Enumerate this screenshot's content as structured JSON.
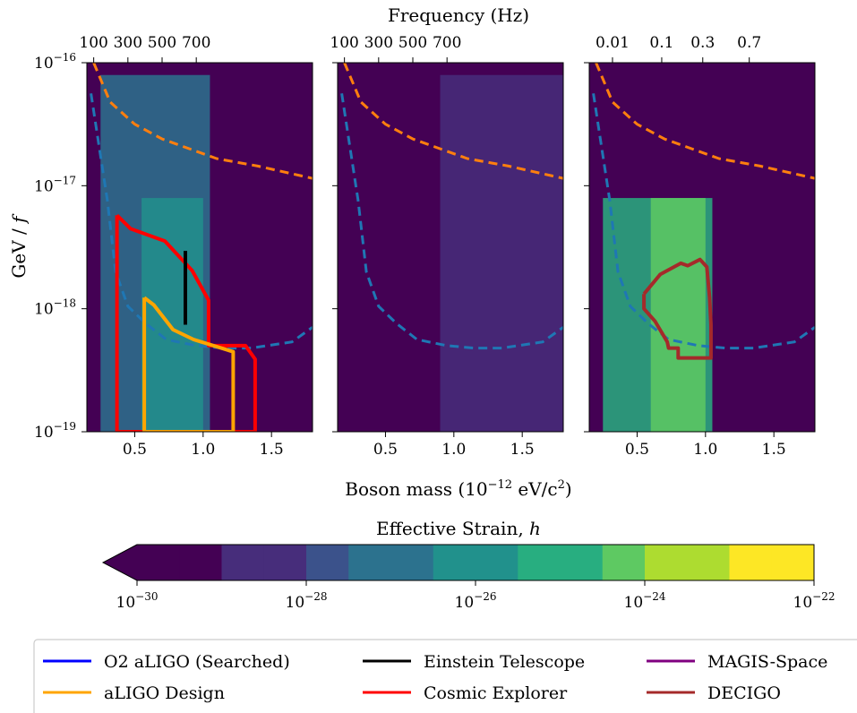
{
  "chart_data": {
    "type": "heatmap",
    "x_axis_label": "Boson mass (10",
    "x_axis_label_sup": "−12",
    "x_axis_label_tail": " eV/c",
    "x_axis_label_sup2": "2",
    "x_axis_label_close": ")",
    "y_axis_label": "GeV / f",
    "top_axis_label": "Frequency (Hz)",
    "colorbar_label": "Effective Strain, h",
    "xlim": [
      0.15,
      1.8
    ],
    "ylim_log10": [
      -19,
      -16
    ],
    "panels": [
      {
        "x_ticks": [
          "0.5",
          "1.0",
          "1.5"
        ],
        "top_ticks": [
          "100",
          "300",
          "500",
          "700"
        ],
        "y_ticks": [
          {
            "base": "10",
            "exp": "−16"
          },
          {
            "base": "10",
            "exp": "−17"
          },
          {
            "base": "10",
            "exp": "−18"
          },
          {
            "base": "10",
            "exp": "−19"
          }
        ]
      },
      {
        "x_ticks": [
          "0.5",
          "1.0",
          "1.5"
        ],
        "top_ticks": [
          "100",
          "300",
          "500",
          "700"
        ],
        "y_ticks": []
      },
      {
        "x_ticks": [
          "0.5",
          "1.0",
          "1.5"
        ],
        "top_ticks": [
          "0.01",
          "0.1",
          "0.3",
          "0.7"
        ],
        "y_ticks": []
      }
    ],
    "colorbar": {
      "ticks": [
        {
          "base": "10",
          "exp": "−30"
        },
        {
          "base": "10",
          "exp": "−28"
        },
        {
          "base": "10",
          "exp": "−26"
        },
        {
          "base": "10",
          "exp": "−24"
        },
        {
          "base": "10",
          "exp": "−22"
        }
      ],
      "range_log10": [
        -30,
        -22
      ],
      "extend": "min",
      "colors": [
        "#440154",
        "#472d7b",
        "#3b528b",
        "#2c728e",
        "#21918c",
        "#28ae80",
        "#5ec962",
        "#addc30",
        "#fde725"
      ]
    },
    "legend": [
      {
        "label": "O2 aLIGO (Searched)",
        "color": "#0000ff"
      },
      {
        "label": "Einstein Telescope",
        "color": "#000000"
      },
      {
        "label": "MAGIS-Space",
        "color": "#800080"
      },
      {
        "label": "aLIGO Design",
        "color": "#ffa500"
      },
      {
        "label": "Cosmic Explorer",
        "color": "#ff0000"
      },
      {
        "label": "DECIGO",
        "color": "#a52a2a"
      }
    ],
    "legend_placement": "bottom",
    "detector_contours": {
      "cosmic_explorer": [
        [
          0.37,
          -17.24
        ],
        [
          0.37,
          -19.0
        ],
        [
          1.38,
          -19.0
        ],
        [
          1.38,
          -18.41
        ],
        [
          1.31,
          -18.3
        ],
        [
          1.04,
          -18.3
        ],
        [
          1.04,
          -17.93
        ],
        [
          0.92,
          -17.69
        ],
        [
          0.72,
          -17.45
        ],
        [
          0.47,
          -17.35
        ],
        [
          0.37,
          -17.24
        ]
      ],
      "aligo_design": [
        [
          0.57,
          -17.91
        ],
        [
          0.57,
          -19.0
        ],
        [
          1.22,
          -19.0
        ],
        [
          1.22,
          -18.35
        ],
        [
          0.93,
          -18.25
        ],
        [
          0.78,
          -18.17
        ],
        [
          0.64,
          -17.97
        ],
        [
          0.57,
          -17.91
        ]
      ],
      "einstein_telescope": [
        [
          0.87,
          -17.53
        ],
        [
          0.87,
          -18.13
        ]
      ],
      "decigo": [
        [
          0.55,
          -17.88
        ],
        [
          0.55,
          -18.0
        ],
        [
          0.63,
          -18.1
        ],
        [
          0.72,
          -18.27
        ],
        [
          0.73,
          -18.32
        ],
        [
          0.8,
          -18.32
        ],
        [
          0.8,
          -18.4
        ],
        [
          1.04,
          -18.4
        ],
        [
          1.04,
          -18.13
        ],
        [
          1.03,
          -17.91
        ],
        [
          1.01,
          -17.66
        ],
        [
          0.96,
          -17.6
        ],
        [
          0.87,
          -17.65
        ],
        [
          0.82,
          -17.63
        ],
        [
          0.67,
          -17.72
        ],
        [
          0.55,
          -17.88
        ]
      ]
    },
    "reference_curves": {
      "orange_dashed": [
        [
          0.2,
          -16.0
        ],
        [
          0.32,
          -16.32
        ],
        [
          0.5,
          -16.5
        ],
        [
          0.7,
          -16.62
        ],
        [
          1.1,
          -16.78
        ],
        [
          1.4,
          -16.84
        ],
        [
          1.8,
          -16.94
        ]
      ],
      "blue_dashed": [
        [
          0.18,
          -16.25
        ],
        [
          0.3,
          -17.12
        ],
        [
          0.36,
          -17.7
        ],
        [
          0.45,
          -17.98
        ],
        [
          0.58,
          -18.12
        ],
        [
          0.73,
          -18.25
        ],
        [
          0.95,
          -18.3
        ],
        [
          1.15,
          -18.32
        ],
        [
          1.35,
          -18.32
        ],
        [
          1.65,
          -18.27
        ],
        [
          1.8,
          -18.15
        ]
      ]
    },
    "strain_regions_log10": [
      {
        "panel": 0,
        "x": [
          0.25,
          1.05
        ],
        "value": -27.0
      },
      {
        "panel": 0,
        "x": [
          0.55,
          1.0
        ],
        "value": -26.0
      },
      {
        "panel": 1,
        "x": [
          0.9,
          1.8
        ],
        "value": -29.0
      },
      {
        "panel": 2,
        "x": [
          0.25,
          1.05
        ],
        "value": -25.0
      },
      {
        "panel": 2,
        "x": [
          0.6,
          1.0
        ],
        "value": -24.0
      }
    ]
  }
}
